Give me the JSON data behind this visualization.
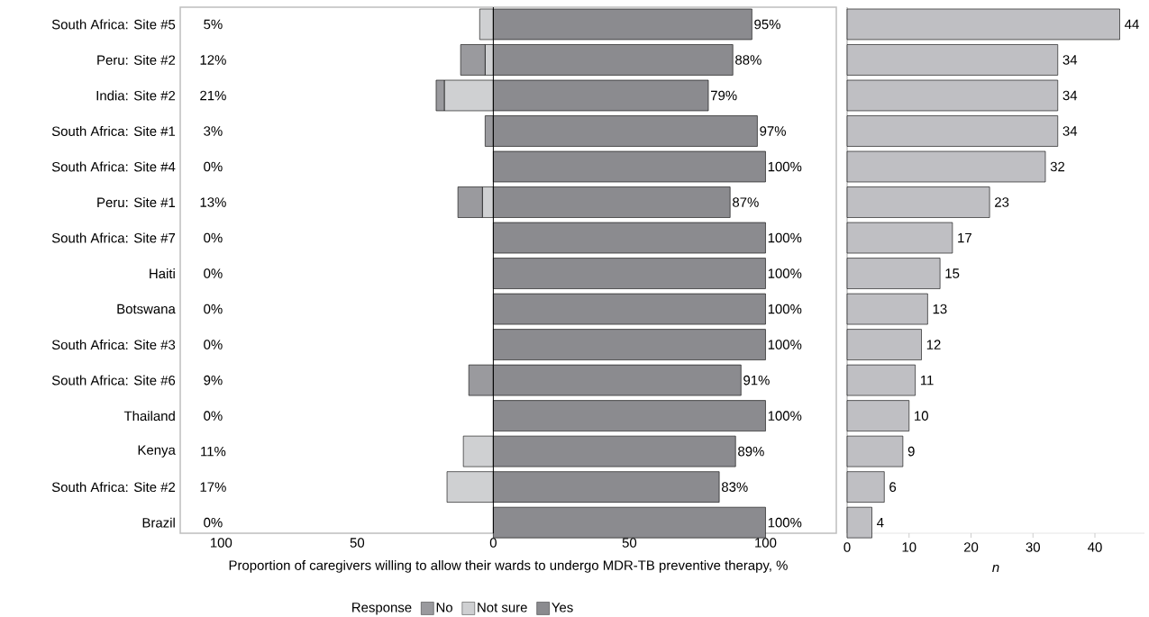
{
  "chart_data": [
    {
      "type": "bar",
      "orientation": "horizontal",
      "stacked": true,
      "xlabel": "Proportion of caregivers willing to allow their wards to undergo MDR-TB preventive therapy, %",
      "legend_title": "Response",
      "legend": "bottom",
      "categories": [
        "South Africa: Site #5",
        "Peru: Site #2",
        "India: Site #2",
        "South Africa: Site #1",
        "South Africa: Site #4",
        "Peru: Site #1",
        "South Africa: Site #7",
        "Haiti",
        "Botswana",
        "South Africa: Site #3",
        "South Africa: Site #6",
        "Thailand",
        "Kenya",
        "South Africa: Site #2",
        "Brazil"
      ],
      "series": [
        {
          "name": "Not sure",
          "color": "#cfd0d2",
          "values": [
            -5,
            -3,
            -18,
            null,
            null,
            -4,
            null,
            null,
            null,
            null,
            null,
            null,
            -11,
            -17,
            null
          ]
        },
        {
          "name": "No",
          "color": "#9a9a9e",
          "values": [
            null,
            -9,
            -3,
            -3,
            null,
            -9,
            null,
            null,
            null,
            null,
            -9,
            null,
            null,
            null,
            null
          ]
        },
        {
          "name": "Yes",
          "color": "#8b8b8f",
          "values": [
            95,
            88,
            79,
            97,
            100,
            87,
            100,
            100,
            100,
            100,
            91,
            100,
            89,
            83,
            100
          ],
          "value_labels": [
            "95%",
            "88%",
            "79%",
            "97%",
            "100%",
            "87%",
            "100%",
            "100%",
            "100%",
            "100%",
            "91%",
            "100%",
            "89%",
            "83%",
            "100%"
          ]
        }
      ],
      "annotations": [
        "5%",
        "12%",
        "21%",
        "3%",
        "0%",
        "13%",
        "0%",
        "0%",
        "0%",
        "0%",
        "9%",
        "0%",
        "11%",
        "17%",
        "0%"
      ],
      "xlim": [
        -115,
        126
      ],
      "xticks": [
        {
          "value": -100,
          "label": "100"
        },
        {
          "value": -50,
          "label": "50"
        },
        0,
        50,
        100
      ],
      "ref_lines": [
        {
          "axis": "x",
          "value": 0,
          "color": "#000000"
        }
      ]
    },
    {
      "type": "bar",
      "orientation": "horizontal",
      "xlabel": "n",
      "tick_labels": "x",
      "data_labels": true,
      "color": "#bfbfc3",
      "categories": [
        null,
        null,
        null,
        null,
        null,
        null,
        null,
        null,
        null,
        null,
        null,
        null,
        null,
        null,
        null
      ],
      "values": [
        44,
        34,
        34,
        34,
        32,
        23,
        17,
        15,
        13,
        12,
        11,
        10,
        9,
        6,
        4
      ],
      "xlim": [
        0,
        48
      ],
      "xticks": [
        0,
        10,
        20,
        30,
        40
      ]
    }
  ]
}
